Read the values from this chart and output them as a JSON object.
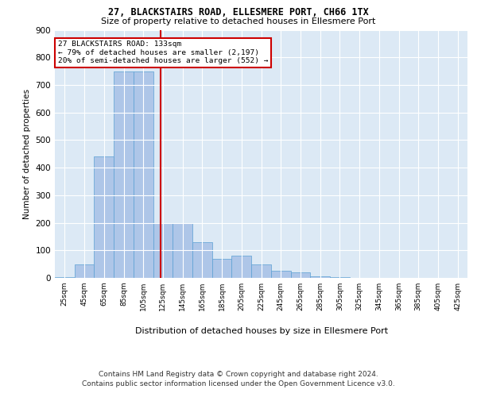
{
  "title1": "27, BLACKSTAIRS ROAD, ELLESMERE PORT, CH66 1TX",
  "title2": "Size of property relative to detached houses in Ellesmere Port",
  "xlabel": "Distribution of detached houses by size in Ellesmere Port",
  "ylabel": "Number of detached properties",
  "bar_color": "#aec6e8",
  "bar_edge_color": "#5a9fd4",
  "background_color": "#dce9f5",
  "grid_color": "#ffffff",
  "bin_starts": [
    25,
    45,
    65,
    85,
    105,
    125,
    145,
    165,
    185,
    205,
    225,
    245,
    265,
    285,
    305,
    325,
    345,
    365,
    385,
    405,
    425
  ],
  "values": [
    3,
    50,
    440,
    750,
    750,
    200,
    200,
    130,
    70,
    80,
    50,
    25,
    20,
    5,
    2,
    0,
    0,
    0,
    0,
    0,
    1
  ],
  "bin_width": 20,
  "property_size": 133,
  "annotation_line1": "27 BLACKSTAIRS ROAD: 133sqm",
  "annotation_line2": "← 79% of detached houses are smaller (2,197)",
  "annotation_line3": "20% of semi-detached houses are larger (552) →",
  "annotation_box_color": "#ffffff",
  "annotation_border_color": "#cc0000",
  "vline_color": "#cc0000",
  "ylim_max": 900,
  "yticks": [
    0,
    100,
    200,
    300,
    400,
    500,
    600,
    700,
    800,
    900
  ],
  "footer1": "Contains HM Land Registry data © Crown copyright and database right 2024.",
  "footer2": "Contains public sector information licensed under the Open Government Licence v3.0."
}
